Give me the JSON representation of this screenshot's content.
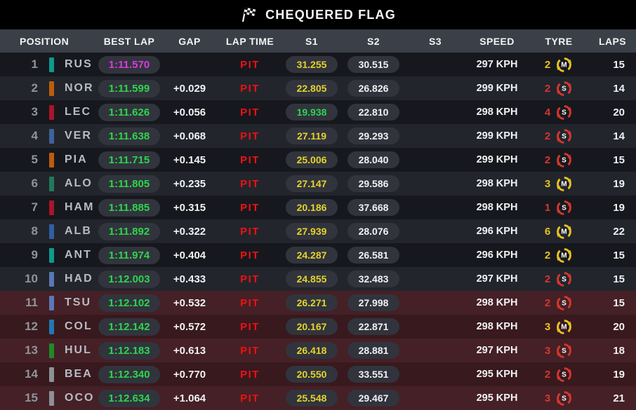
{
  "title": {
    "text": "CHEQUERED FLAG",
    "flag_icon": "chequered-flag"
  },
  "columns": [
    "POSITION",
    "BEST LAP",
    "GAP",
    "LAP TIME",
    "S1",
    "S2",
    "S3",
    "SPEED",
    "TYRE",
    "LAPS"
  ],
  "colors": {
    "session_fastest": "#da3ae2",
    "personal_best_green": "#2ed44e",
    "sector_yellow": "#e5d22c",
    "pit_red": "#f01111",
    "tyre_soft": "#d8352c",
    "tyre_medium": "#e9c222",
    "eliminated_zone_bg": "#452026"
  },
  "rows": [
    {
      "pos": "1",
      "driver": "RUS",
      "team_color": "#0d9a8c",
      "best_lap": "1:11.570",
      "best_lap_color": "purple",
      "gap": "",
      "lap_time": "PIT",
      "s1": "31.255",
      "s1_color": "yellow",
      "s2": "30.515",
      "s2_color": "white",
      "s3": "",
      "speed": "297 KPH",
      "tyre_count": "2",
      "compound": "M",
      "laps": "15",
      "zone": "normal"
    },
    {
      "pos": "2",
      "driver": "NOR",
      "team_color": "#bc5d0c",
      "best_lap": "1:11.599",
      "best_lap_color": "green",
      "gap": "+0.029",
      "lap_time": "PIT",
      "s1": "22.805",
      "s1_color": "yellow",
      "s2": "26.826",
      "s2_color": "white",
      "s3": "",
      "speed": "299 KPH",
      "tyre_count": "2",
      "compound": "S",
      "laps": "14",
      "zone": "normal"
    },
    {
      "pos": "3",
      "driver": "LEC",
      "team_color": "#aa1428",
      "best_lap": "1:11.626",
      "best_lap_color": "green",
      "gap": "+0.056",
      "lap_time": "PIT",
      "s1": "19.938",
      "s1_color": "green",
      "s2": "22.810",
      "s2_color": "white",
      "s3": "",
      "speed": "298 KPH",
      "tyre_count": "4",
      "compound": "S",
      "laps": "20",
      "zone": "normal"
    },
    {
      "pos": "4",
      "driver": "VER",
      "team_color": "#3d639c",
      "best_lap": "1:11.638",
      "best_lap_color": "green",
      "gap": "+0.068",
      "lap_time": "PIT",
      "s1": "27.119",
      "s1_color": "yellow",
      "s2": "29.293",
      "s2_color": "white",
      "s3": "",
      "speed": "299 KPH",
      "tyre_count": "2",
      "compound": "S",
      "laps": "14",
      "zone": "normal"
    },
    {
      "pos": "5",
      "driver": "PIA",
      "team_color": "#bc5d0c",
      "best_lap": "1:11.715",
      "best_lap_color": "green",
      "gap": "+0.145",
      "lap_time": "PIT",
      "s1": "25.006",
      "s1_color": "yellow",
      "s2": "28.040",
      "s2_color": "white",
      "s3": "",
      "speed": "299 KPH",
      "tyre_count": "2",
      "compound": "S",
      "laps": "15",
      "zone": "normal"
    },
    {
      "pos": "6",
      "driver": "ALO",
      "team_color": "#207a5c",
      "best_lap": "1:11.805",
      "best_lap_color": "green",
      "gap": "+0.235",
      "lap_time": "PIT",
      "s1": "27.147",
      "s1_color": "yellow",
      "s2": "29.586",
      "s2_color": "white",
      "s3": "",
      "speed": "298 KPH",
      "tyre_count": "3",
      "compound": "M",
      "laps": "19",
      "zone": "normal"
    },
    {
      "pos": "7",
      "driver": "HAM",
      "team_color": "#aa1428",
      "best_lap": "1:11.885",
      "best_lap_color": "green",
      "gap": "+0.315",
      "lap_time": "PIT",
      "s1": "20.186",
      "s1_color": "yellow",
      "s2": "37.668",
      "s2_color": "white",
      "s3": "",
      "speed": "298 KPH",
      "tyre_count": "1",
      "compound": "S",
      "laps": "19",
      "zone": "normal"
    },
    {
      "pos": "8",
      "driver": "ALB",
      "team_color": "#2f5fa5",
      "best_lap": "1:11.892",
      "best_lap_color": "green",
      "gap": "+0.322",
      "lap_time": "PIT",
      "s1": "27.939",
      "s1_color": "yellow",
      "s2": "28.076",
      "s2_color": "white",
      "s3": "",
      "speed": "296 KPH",
      "tyre_count": "6",
      "compound": "M",
      "laps": "22",
      "zone": "normal"
    },
    {
      "pos": "9",
      "driver": "ANT",
      "team_color": "#0d9a8c",
      "best_lap": "1:11.974",
      "best_lap_color": "green",
      "gap": "+0.404",
      "lap_time": "PIT",
      "s1": "24.287",
      "s1_color": "yellow",
      "s2": "26.581",
      "s2_color": "white",
      "s3": "",
      "speed": "296 KPH",
      "tyre_count": "2",
      "compound": "M",
      "laps": "15",
      "zone": "normal"
    },
    {
      "pos": "10",
      "driver": "HAD",
      "team_color": "#5b77b5",
      "best_lap": "1:12.003",
      "best_lap_color": "green",
      "gap": "+0.433",
      "lap_time": "PIT",
      "s1": "24.855",
      "s1_color": "yellow",
      "s2": "32.483",
      "s2_color": "white",
      "s3": "",
      "speed": "297 KPH",
      "tyre_count": "2",
      "compound": "S",
      "laps": "15",
      "zone": "normal"
    },
    {
      "pos": "11",
      "driver": "TSU",
      "team_color": "#5b77b5",
      "best_lap": "1:12.102",
      "best_lap_color": "green",
      "gap": "+0.532",
      "lap_time": "PIT",
      "s1": "26.271",
      "s1_color": "yellow",
      "s2": "27.998",
      "s2_color": "white",
      "s3": "",
      "speed": "298 KPH",
      "tyre_count": "2",
      "compound": "S",
      "laps": "15",
      "zone": "eliminated"
    },
    {
      "pos": "12",
      "driver": "COL",
      "team_color": "#2278b4",
      "best_lap": "1:12.142",
      "best_lap_color": "green",
      "gap": "+0.572",
      "lap_time": "PIT",
      "s1": "20.167",
      "s1_color": "yellow",
      "s2": "22.871",
      "s2_color": "white",
      "s3": "",
      "speed": "298 KPH",
      "tyre_count": "3",
      "compound": "M",
      "laps": "20",
      "zone": "eliminated"
    },
    {
      "pos": "13",
      "driver": "HUL",
      "team_color": "#1f8a28",
      "best_lap": "1:12.183",
      "best_lap_color": "green",
      "gap": "+0.613",
      "lap_time": "PIT",
      "s1": "26.418",
      "s1_color": "yellow",
      "s2": "28.881",
      "s2_color": "white",
      "s3": "",
      "speed": "297 KPH",
      "tyre_count": "3",
      "compound": "S",
      "laps": "18",
      "zone": "eliminated"
    },
    {
      "pos": "14",
      "driver": "BEA",
      "team_color": "#8d9196",
      "best_lap": "1:12.340",
      "best_lap_color": "green",
      "gap": "+0.770",
      "lap_time": "PIT",
      "s1": "20.550",
      "s1_color": "yellow",
      "s2": "33.551",
      "s2_color": "white",
      "s3": "",
      "speed": "295 KPH",
      "tyre_count": "2",
      "compound": "S",
      "laps": "19",
      "zone": "eliminated"
    },
    {
      "pos": "15",
      "driver": "OCO",
      "team_color": "#8d9196",
      "best_lap": "1:12.634",
      "best_lap_color": "green",
      "gap": "+1.064",
      "lap_time": "PIT",
      "s1": "25.548",
      "s1_color": "yellow",
      "s2": "29.467",
      "s2_color": "white",
      "s3": "",
      "speed": "295 KPH",
      "tyre_count": "3",
      "compound": "S",
      "laps": "21",
      "zone": "eliminated"
    }
  ]
}
